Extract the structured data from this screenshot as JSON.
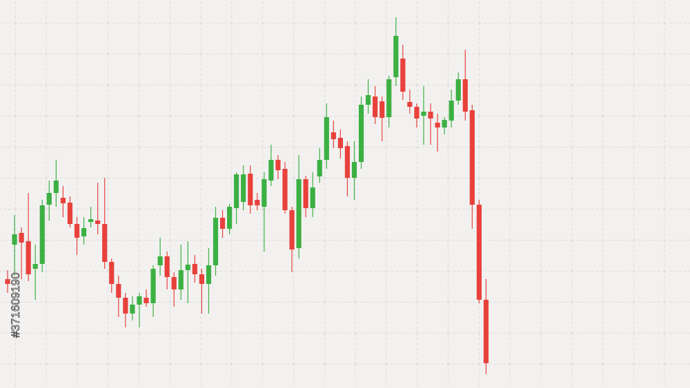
{
  "chart_data": {
    "type": "candlestick",
    "watermark": "#371609190",
    "up_color": "#3cb043",
    "down_color": "#e8413c",
    "ylim": [
      0,
      563
    ],
    "open": [
      158,
      208,
      225,
      213,
      173,
      180,
      266,
      283,
      276,
      269,
      238,
      220,
      241,
      243,
      238,
      183,
      151,
      131,
      108,
      121,
      131,
      123,
      178,
      191,
      161,
      143,
      171,
      180,
      165,
      151,
      178,
      247,
      231,
      261,
      270,
      311,
      273,
      263,
      301,
      331,
      318,
      258,
      203,
      303,
      261,
      307,
      331,
      371,
      363,
      351,
      305,
      328,
      411,
      423,
      416,
      393,
      451,
      478,
      415,
      408,
      395,
      401,
      385,
      378,
      388,
      417,
      448,
      403,
      266,
      128
    ],
    "high": [
      171,
      251,
      233,
      283,
      208,
      273,
      301,
      331,
      293,
      278,
      248,
      248,
      263,
      298,
      305,
      188,
      163,
      138,
      133,
      138,
      143,
      178,
      218,
      198,
      168,
      208,
      213,
      193,
      173,
      203,
      263,
      258,
      267,
      313,
      323,
      323,
      283,
      313,
      353,
      338,
      328,
      263,
      338,
      308,
      313,
      348,
      413,
      388,
      375,
      358,
      358,
      423,
      448,
      438,
      423,
      453,
      538,
      498,
      433,
      413,
      438,
      413,
      398,
      393,
      433,
      458,
      491,
      411,
      273,
      158
    ],
    "low": [
      138,
      163,
      158,
      155,
      128,
      168,
      243,
      263,
      248,
      233,
      193,
      208,
      233,
      223,
      173,
      138,
      103,
      88,
      98,
      88,
      118,
      103,
      163,
      143,
      118,
      128,
      123,
      153,
      108,
      108,
      163,
      218,
      223,
      238,
      258,
      253,
      258,
      198,
      293,
      303,
      253,
      168,
      188,
      248,
      248,
      298,
      318,
      348,
      333,
      278,
      273,
      318,
      398,
      383,
      358,
      378,
      438,
      418,
      398,
      378,
      353,
      353,
      343,
      368,
      378,
      411,
      388,
      231,
      123,
      20
    ],
    "close": [
      151,
      223,
      211,
      165,
      180,
      265,
      283,
      301,
      268,
      238,
      218,
      232,
      245,
      238,
      183,
      151,
      131,
      108,
      121,
      133,
      123,
      173,
      191,
      161,
      143,
      171,
      179,
      165,
      151,
      178,
      247,
      231,
      263,
      310,
      310,
      265,
      265,
      303,
      331,
      316,
      258,
      201,
      303,
      261,
      291,
      331,
      393,
      361,
      348,
      305,
      328,
      411,
      425,
      393,
      392,
      448,
      511,
      430,
      408,
      391,
      401,
      391,
      378,
      389,
      417,
      448,
      401,
      266,
      128,
      36
    ]
  }
}
